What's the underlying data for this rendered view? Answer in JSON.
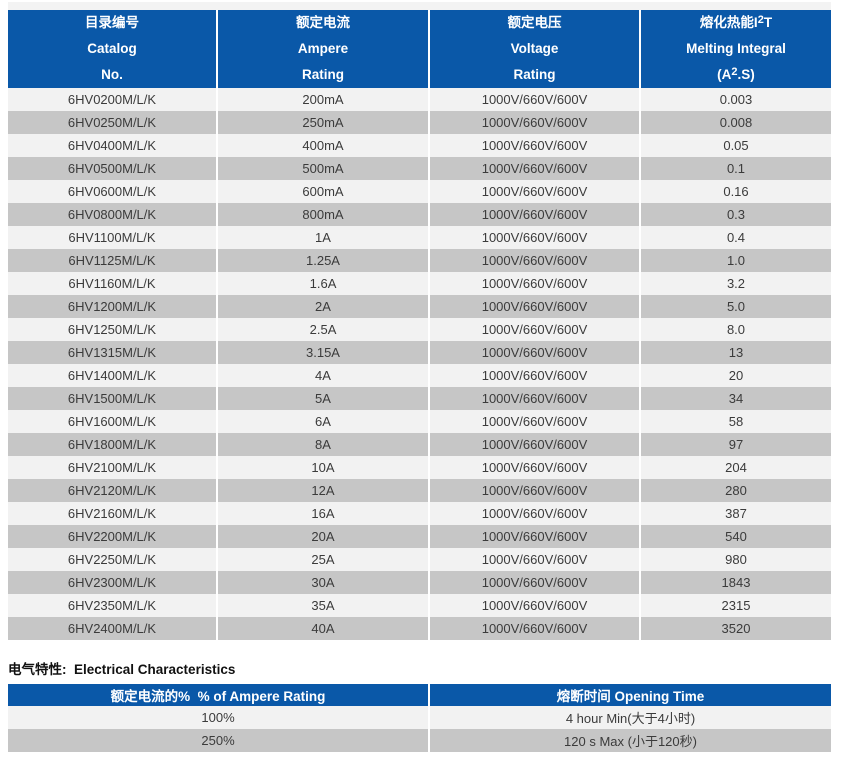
{
  "page": {
    "accent_blue": "#0a58a8",
    "row_light": "#f2f2f2",
    "row_dark": "#c6c6c6"
  },
  "main_table": {
    "headers": [
      {
        "lines": [
          "目录编号",
          "Catalog",
          "No."
        ]
      },
      {
        "lines": [
          "额定电流",
          "Ampere",
          "Rating"
        ]
      },
      {
        "lines": [
          "额定电压",
          "Voltage",
          "Rating"
        ]
      },
      {
        "line1_pre": "熔化热能I",
        "line1_sup": "2",
        "line1_post": "T",
        "line2": "Melting Integral",
        "line3_pre": "(A",
        "line3_sup": "2",
        "line3_post": ".S)"
      }
    ],
    "rows": [
      {
        "catalog": "6HV0200M/L/K",
        "ampere": "200mA",
        "voltage": "1000V/660V/600V",
        "i2t": "0.003"
      },
      {
        "catalog": "6HV0250M/L/K",
        "ampere": "250mA",
        "voltage": "1000V/660V/600V",
        "i2t": "0.008"
      },
      {
        "catalog": "6HV0400M/L/K",
        "ampere": "400mA",
        "voltage": "1000V/660V/600V",
        "i2t": "0.05"
      },
      {
        "catalog": "6HV0500M/L/K",
        "ampere": "500mA",
        "voltage": "1000V/660V/600V",
        "i2t": "0.1"
      },
      {
        "catalog": "6HV0600M/L/K",
        "ampere": "600mA",
        "voltage": "1000V/660V/600V",
        "i2t": "0.16"
      },
      {
        "catalog": "6HV0800M/L/K",
        "ampere": "800mA",
        "voltage": "1000V/660V/600V",
        "i2t": "0.3"
      },
      {
        "catalog": "6HV1100M/L/K",
        "ampere": "1A",
        "voltage": "1000V/660V/600V",
        "i2t": "0.4"
      },
      {
        "catalog": "6HV1125M/L/K",
        "ampere": "1.25A",
        "voltage": "1000V/660V/600V",
        "i2t": "1.0"
      },
      {
        "catalog": "6HV1160M/L/K",
        "ampere": "1.6A",
        "voltage": "1000V/660V/600V",
        "i2t": "3.2"
      },
      {
        "catalog": "6HV1200M/L/K",
        "ampere": "2A",
        "voltage": "1000V/660V/600V",
        "i2t": "5.0"
      },
      {
        "catalog": "6HV1250M/L/K",
        "ampere": "2.5A",
        "voltage": "1000V/660V/600V",
        "i2t": "8.0"
      },
      {
        "catalog": "6HV1315M/L/K",
        "ampere": "3.15A",
        "voltage": "1000V/660V/600V",
        "i2t": "13"
      },
      {
        "catalog": "6HV1400M/L/K",
        "ampere": "4A",
        "voltage": "1000V/660V/600V",
        "i2t": "20"
      },
      {
        "catalog": "6HV1500M/L/K",
        "ampere": "5A",
        "voltage": "1000V/660V/600V",
        "i2t": "34"
      },
      {
        "catalog": "6HV1600M/L/K",
        "ampere": "6A",
        "voltage": "1000V/660V/600V",
        "i2t": "58"
      },
      {
        "catalog": "6HV1800M/L/K",
        "ampere": "8A",
        "voltage": "1000V/660V/600V",
        "i2t": "97"
      },
      {
        "catalog": "6HV2100M/L/K",
        "ampere": "10A",
        "voltage": "1000V/660V/600V",
        "i2t": "204"
      },
      {
        "catalog": "6HV2120M/L/K",
        "ampere": "12A",
        "voltage": "1000V/660V/600V",
        "i2t": "280"
      },
      {
        "catalog": "6HV2160M/L/K",
        "ampere": "16A",
        "voltage": "1000V/660V/600V",
        "i2t": "387"
      },
      {
        "catalog": "6HV2200M/L/K",
        "ampere": "20A",
        "voltage": "1000V/660V/600V",
        "i2t": "540"
      },
      {
        "catalog": "6HV2250M/L/K",
        "ampere": "25A",
        "voltage": "1000V/660V/600V",
        "i2t": "980"
      },
      {
        "catalog": "6HV2300M/L/K",
        "ampere": "30A",
        "voltage": "1000V/660V/600V",
        "i2t": "1843"
      },
      {
        "catalog": "6HV2350M/L/K",
        "ampere": "35A",
        "voltage": "1000V/660V/600V",
        "i2t": "2315"
      },
      {
        "catalog": "6HV2400M/L/K",
        "ampere": "40A",
        "voltage": "1000V/660V/600V",
        "i2t": "3520"
      }
    ]
  },
  "section2": {
    "title": "电气特性:  Electrical Characteristics",
    "headers": [
      "额定电流的%  % of Ampere Rating",
      "熔断时间 Opening Time"
    ],
    "rows": [
      [
        "100%",
        "4 hour Min(大于4小时)"
      ],
      [
        "250%",
        "120 s Max (小于120秒)"
      ]
    ]
  }
}
